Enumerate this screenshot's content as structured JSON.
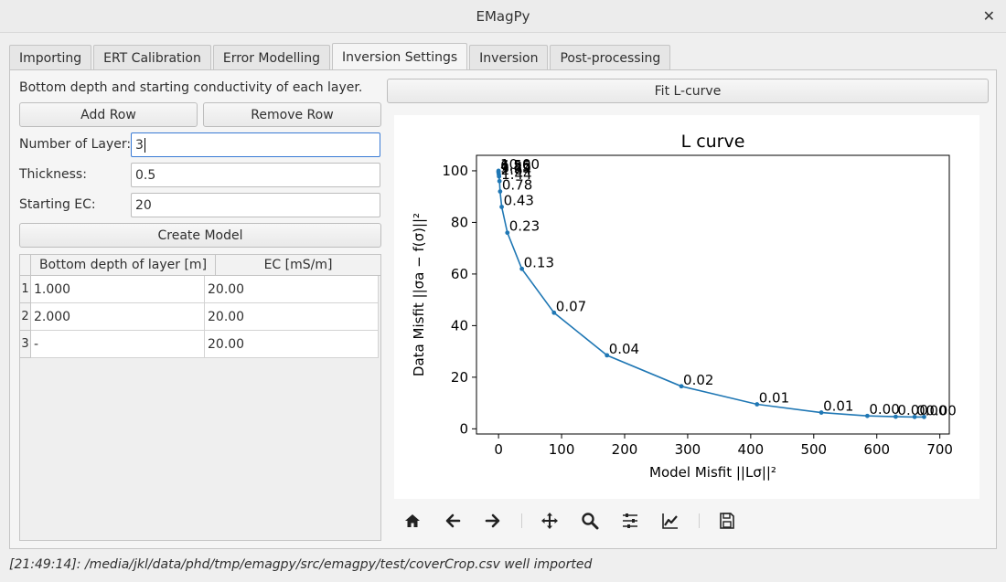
{
  "window": {
    "title": "EMagPy"
  },
  "tabs": [
    {
      "label": "Importing"
    },
    {
      "label": "ERT Calibration"
    },
    {
      "label": "Error Modelling"
    },
    {
      "label": "Inversion Settings"
    },
    {
      "label": "Inversion"
    },
    {
      "label": "Post-processing"
    }
  ],
  "settings": {
    "description": "Bottom depth and starting conductivity of each layer.",
    "add_row": "Add Row",
    "remove_row": "Remove Row",
    "nlayer_label": "Number of Layer:",
    "nlayer_value": "3",
    "thickness_label": "Thickness:",
    "thickness_value": "0.5",
    "start_ec_label": "Starting EC:",
    "start_ec_value": "20",
    "create_model": "Create Model"
  },
  "table": {
    "headers": [
      "Bottom depth of layer [m]",
      "EC [mS/m]"
    ],
    "rows": [
      {
        "index": "1",
        "depth": "1.000",
        "ec": "20.00"
      },
      {
        "index": "2",
        "depth": "2.000",
        "ec": "20.00"
      },
      {
        "index": "3",
        "depth": "-",
        "ec": "20.00"
      }
    ]
  },
  "fit_button": "Fit L-curve",
  "chart_data": {
    "type": "line",
    "title": "L curve",
    "xlabel": "Model Misfit ||Lσ||²",
    "ylabel": "Data Misfit ||σa − f(σ)||²",
    "xlim": [
      -35,
      715
    ],
    "ylim": [
      -2,
      106
    ],
    "xticks": [
      0,
      100,
      200,
      300,
      400,
      500,
      600,
      700
    ],
    "yticks": [
      0,
      20,
      40,
      60,
      80,
      100
    ],
    "color": "#1f77b4",
    "points": [
      {
        "x": 0,
        "y": 100,
        "label": "10.00"
      },
      {
        "x": 0,
        "y": 99.7,
        "label": "6.56"
      },
      {
        "x": 0,
        "y": 99.3,
        "label": "4.85"
      },
      {
        "x": 0.5,
        "y": 98.5,
        "label": "3.39"
      },
      {
        "x": 0.8,
        "y": 97.8,
        "label": "2.64"
      },
      {
        "x": 1.5,
        "y": 96,
        "label": "1.44"
      },
      {
        "x": 2.5,
        "y": 92,
        "label": "0.78"
      },
      {
        "x": 5,
        "y": 86,
        "label": "0.43"
      },
      {
        "x": 14,
        "y": 76,
        "label": "0.23"
      },
      {
        "x": 37,
        "y": 62,
        "label": "0.13"
      },
      {
        "x": 88,
        "y": 45,
        "label": "0.07"
      },
      {
        "x": 172,
        "y": 28.5,
        "label": "0.04"
      },
      {
        "x": 290,
        "y": 16.5,
        "label": "0.02"
      },
      {
        "x": 410,
        "y": 9.5,
        "label": "0.01"
      },
      {
        "x": 512,
        "y": 6.3,
        "label": "0.01"
      },
      {
        "x": 585,
        "y": 5,
        "label": "0.00"
      },
      {
        "x": 630,
        "y": 4.7,
        "label": "0.00"
      },
      {
        "x": 660,
        "y": 4.6,
        "label": "0.00"
      },
      {
        "x": 675,
        "y": 4.6,
        "label": "0.00"
      }
    ]
  },
  "toolbar": {
    "items": [
      "home-icon",
      "back-icon",
      "forward-icon",
      "pan-icon",
      "zoom-icon",
      "subplots-icon",
      "axes-edit-icon",
      "save-icon"
    ]
  },
  "status": "[21:49:14]: /media/jkl/data/phd/tmp/emagpy/src/emagpy/test/coverCrop.csv well imported"
}
